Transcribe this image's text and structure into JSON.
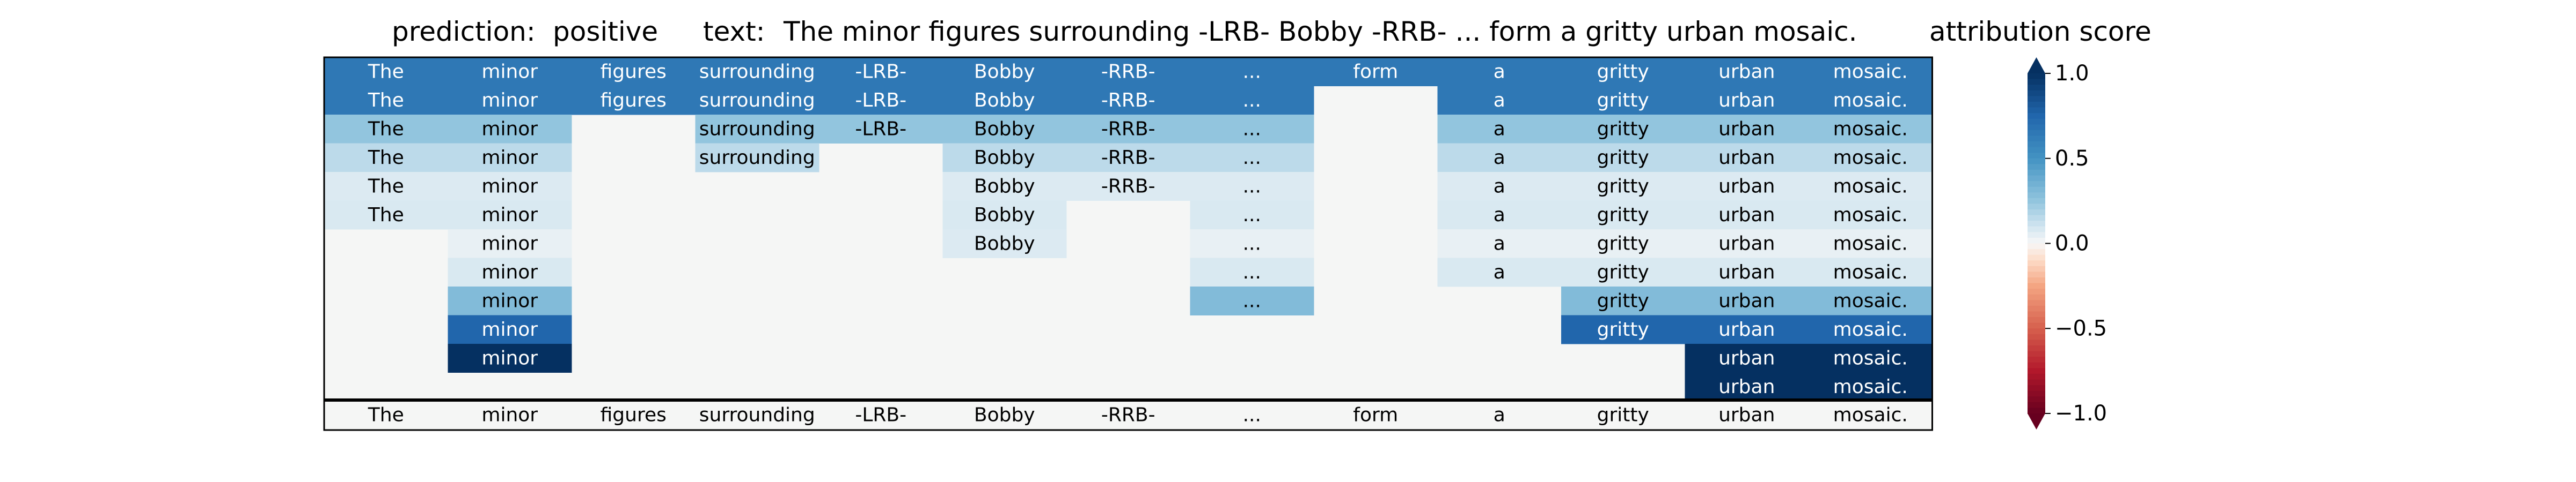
{
  "header": {
    "prediction_label": "prediction:",
    "prediction_value": "positive",
    "text_label": "text:",
    "text_value": "The minor figures surrounding -LRB- Bobby -RRB- ... form a gritty urban mosaic.",
    "colorbar_title": "attribution score"
  },
  "chart_data": {
    "type": "heatmap",
    "tokens": [
      "The",
      "minor",
      "figures",
      "surrounding",
      "-LRB-",
      "Bobby",
      "-RRB-",
      "...",
      "form",
      "a",
      "gritty",
      "urban",
      "mosaic."
    ],
    "rows": [
      [
        0.65,
        0.65,
        0.65,
        0.65,
        0.65,
        0.65,
        0.65,
        0.65,
        0.65,
        0.65,
        0.65,
        0.65,
        0.65
      ],
      [
        0.65,
        0.65,
        0.65,
        0.65,
        0.65,
        0.65,
        0.65,
        0.65,
        null,
        0.65,
        0.65,
        0.65,
        0.65
      ],
      [
        0.25,
        0.25,
        null,
        0.25,
        0.25,
        0.25,
        0.25,
        0.25,
        null,
        0.25,
        0.25,
        0.25,
        0.25
      ],
      [
        0.15,
        0.15,
        null,
        0.15,
        null,
        0.15,
        0.15,
        0.15,
        null,
        0.15,
        0.15,
        0.15,
        0.15
      ],
      [
        0.07,
        0.07,
        null,
        null,
        null,
        0.07,
        0.07,
        0.07,
        null,
        0.07,
        0.07,
        0.07,
        0.07
      ],
      [
        0.08,
        0.08,
        null,
        null,
        null,
        0.08,
        null,
        0.08,
        null,
        0.08,
        0.08,
        0.08,
        0.08
      ],
      [
        null,
        0.04,
        null,
        null,
        null,
        0.07,
        null,
        0.04,
        null,
        0.04,
        0.04,
        0.04,
        0.04
      ],
      [
        null,
        0.08,
        null,
        null,
        null,
        null,
        null,
        0.08,
        null,
        0.08,
        0.08,
        0.08,
        0.08
      ],
      [
        null,
        0.3,
        null,
        null,
        null,
        null,
        null,
        0.3,
        null,
        null,
        0.3,
        0.3,
        0.3
      ],
      [
        null,
        0.75,
        null,
        null,
        null,
        null,
        null,
        null,
        null,
        null,
        0.75,
        0.75,
        0.75
      ],
      [
        null,
        1.0,
        null,
        null,
        null,
        null,
        null,
        null,
        null,
        null,
        null,
        1.0,
        1.0
      ],
      [
        null,
        null,
        null,
        null,
        null,
        null,
        null,
        null,
        null,
        null,
        null,
        1.0,
        1.0
      ]
    ],
    "colorbar": {
      "vmin": -1.0,
      "vmax": 1.0,
      "ticks": [
        1.0,
        0.5,
        0.0,
        -0.5,
        -1.0
      ],
      "tick_labels": [
        "1.0",
        "0.5",
        "0.0",
        "−0.5",
        "−1.0"
      ],
      "colormap": "RdBu"
    },
    "colors": {
      "empty_cell": "#f5f6f5",
      "border": "#000000"
    }
  }
}
